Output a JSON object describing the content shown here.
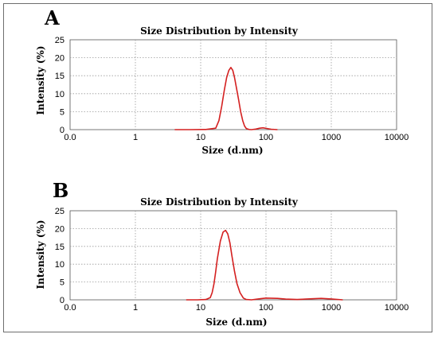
{
  "chart_data": [
    {
      "type": "line",
      "panel": "A",
      "title": "Size Distribution by Intensity",
      "xlabel": "Size (d.nm)",
      "ylabel": "Intensity (%)",
      "x_scale": "log",
      "xlim": [
        0.1,
        10000
      ],
      "ylim": [
        0,
        25
      ],
      "x_ticks": [
        "0.0",
        "1",
        "10",
        "100",
        "1000",
        "10000"
      ],
      "y_ticks": [
        "0",
        "5",
        "10",
        "15",
        "20",
        "25"
      ],
      "grid": true,
      "legend": "none",
      "series": [
        {
          "color": "#d42020",
          "x": [
            4,
            7,
            12,
            17,
            19,
            21,
            23,
            25,
            27,
            29,
            31,
            33,
            35,
            38,
            41,
            44,
            47,
            50,
            55,
            60,
            70,
            80,
            90,
            100,
            120,
            150
          ],
          "y": [
            0,
            0,
            0.05,
            0.4,
            2.5,
            6.5,
            11,
            14.5,
            16.5,
            17.3,
            16.5,
            14.5,
            12,
            8.5,
            5,
            2.5,
            1,
            0.3,
            0.05,
            0,
            0.15,
            0.4,
            0.5,
            0.35,
            0.1,
            0
          ]
        }
      ]
    },
    {
      "type": "line",
      "panel": "B",
      "title": "Size Distribution by Intensity",
      "xlabel": "Size (d.nm)",
      "ylabel": "Intensity (%)",
      "x_scale": "log",
      "xlim": [
        0.1,
        10000
      ],
      "ylim": [
        0,
        25
      ],
      "x_ticks": [
        "0.0",
        "1",
        "10",
        "100",
        "1000",
        "10000"
      ],
      "y_ticks": [
        "0",
        "5",
        "10",
        "15",
        "20",
        "25"
      ],
      "grid": true,
      "legend": "none",
      "series": [
        {
          "color": "#d42020",
          "x": [
            6,
            9,
            12,
            14,
            15,
            16,
            17,
            18,
            20,
            22,
            24,
            26,
            28,
            30,
            33,
            36,
            40,
            45,
            50,
            60,
            80,
            100,
            150,
            200,
            300,
            500,
            700,
            1000,
            1500
          ],
          "y": [
            0,
            0,
            0.1,
            0.6,
            2,
            4.5,
            8,
            11.5,
            16.5,
            19,
            19.5,
            18.5,
            16,
            12.5,
            8,
            4.5,
            2,
            0.5,
            0.1,
            0,
            0.3,
            0.5,
            0.4,
            0.2,
            0.1,
            0.3,
            0.4,
            0.25,
            0
          ]
        }
      ]
    }
  ]
}
